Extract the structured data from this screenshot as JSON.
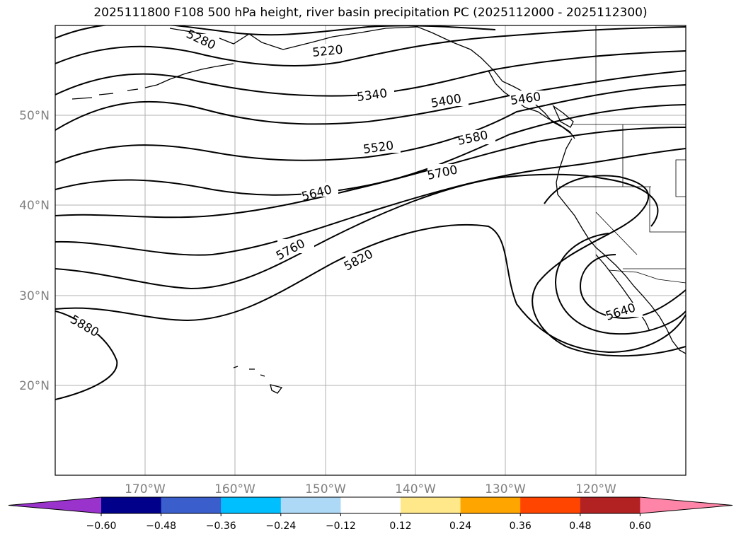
{
  "title": "2025111800 F108 500 hPa height, river basin precipitation PC (2025112000 - 2025112300)",
  "map": {
    "latitude_labels": [
      "50°N",
      "40°N",
      "30°N",
      "20°N"
    ],
    "longitude_labels": [
      "170°W",
      "160°W",
      "150°W",
      "140°W",
      "130°W",
      "120°W"
    ],
    "contour_labels": [
      "5280",
      "5220",
      "5340",
      "5400",
      "5460",
      "5520",
      "5580",
      "5640",
      "5700",
      "5760",
      "5820",
      "5880",
      "5640"
    ],
    "grid": true,
    "contour_color": "#000000",
    "coastline_color": "#000000"
  },
  "colorbar": {
    "orientation": "horizontal",
    "extend": "both",
    "tick_labels": [
      "−0.60",
      "−0.48",
      "−0.36",
      "−0.24",
      "−0.12",
      "0.12",
      "0.24",
      "0.36",
      "0.48",
      "0.60"
    ],
    "colors": [
      "#9933cc",
      "#00008b",
      "#3a5fcd",
      "#00bfff",
      "#add8f6",
      "#ffffff",
      "#ffe88a",
      "#ffa500",
      "#ff4500",
      "#b22222",
      "#ff85a8"
    ]
  }
}
